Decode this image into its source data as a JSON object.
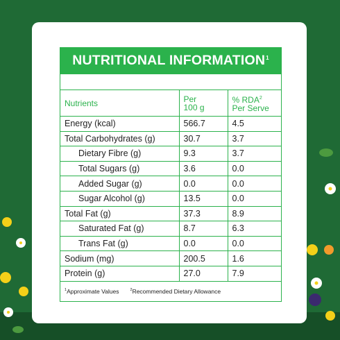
{
  "header": {
    "title": "NUTRITIONAL INFORMATION",
    "title_sup": "1"
  },
  "columns": {
    "nutrients": "Nutrients",
    "per_line1": "Per",
    "per_line2": "100 g",
    "rda_line1": "% RDA",
    "rda_sup": "2",
    "rda_line2": "Per Serve"
  },
  "rows": [
    {
      "name": "Energy (kcal)",
      "per100g": "566.7",
      "rda": "4.5"
    },
    {
      "name": "Total Carbohydrates (g)",
      "per100g": "30.7",
      "rda": "3.7"
    },
    {
      "name": "Dietary Fibre (g)",
      "per100g": "9.3",
      "rda": "3.7"
    },
    {
      "name": "Total Sugars (g)",
      "per100g": "3.6",
      "rda": "0.0"
    },
    {
      "name": "Added Sugar (g)",
      "per100g": "0.0",
      "rda": "0.0"
    },
    {
      "name": "Sugar Alcohol (g)",
      "per100g": "13.5",
      "rda": "0.0"
    },
    {
      "name": "Total Fat (g)",
      "per100g": "37.3",
      "rda": "8.9"
    },
    {
      "name": "Saturated Fat (g)",
      "per100g": "8.7",
      "rda": "6.3"
    },
    {
      "name": "Trans Fat (g)",
      "per100g": "0.0",
      "rda": "0.0"
    },
    {
      "name": "Sodium (mg)",
      "per100g": "200.5",
      "rda": "1.6"
    },
    {
      "name": "Protein (g)",
      "per100g": "27.0",
      "rda": "7.9"
    }
  ],
  "footnotes": {
    "fn1_sup": "1",
    "fn1_text": "Approximate Values",
    "fn2_sup": "2",
    "fn2_text": "Recommended Dietary Allowance"
  },
  "colors": {
    "accent": "#2bb24c",
    "background": "#1f6a35"
  }
}
